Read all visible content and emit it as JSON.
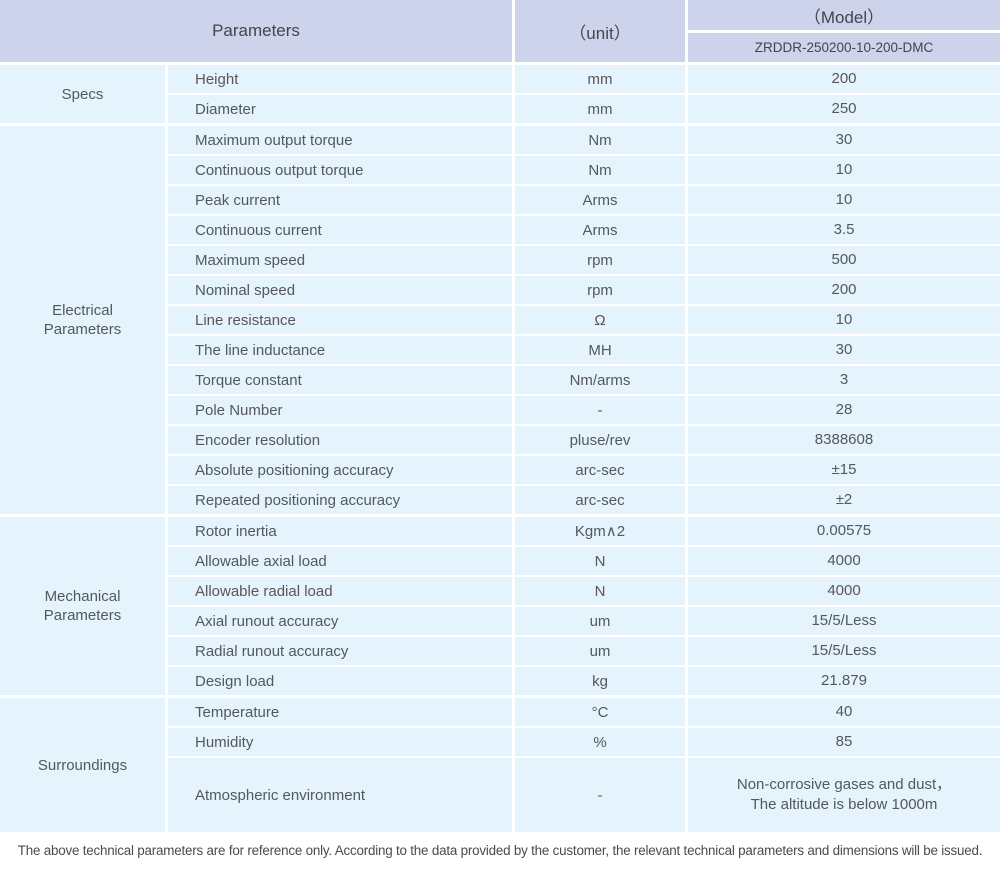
{
  "colors": {
    "header_bg": "#ccd3ea",
    "header_text": "#41464e",
    "cell_bg": "#e4f3fc",
    "cell_text": "#54585e",
    "separator": "#ffffff",
    "footer_text": "#4b4b4b"
  },
  "header": {
    "parameters_label": "Parameters",
    "unit_label": "（unit）",
    "model_label": "（Model）",
    "model_value": "ZRDDR-250200-10-200-DMC"
  },
  "sections": [
    {
      "name": "Specs",
      "rows": [
        {
          "parameter": "Height",
          "unit": "mm",
          "value": "200"
        },
        {
          "parameter": "Diameter",
          "unit": "mm",
          "value": "250"
        }
      ]
    },
    {
      "name": "Electrical\nParameters",
      "rows": [
        {
          "parameter": "Maximum output torque",
          "unit": "Nm",
          "value": "30"
        },
        {
          "parameter": "Continuous output torque",
          "unit": "Nm",
          "value": "10"
        },
        {
          "parameter": "Peak current",
          "unit": "Arms",
          "value": "10"
        },
        {
          "parameter": "Continuous current",
          "unit": "Arms",
          "value": "3.5"
        },
        {
          "parameter": "Maximum speed",
          "unit": "rpm",
          "value": "500"
        },
        {
          "parameter": "Nominal speed",
          "unit": "rpm",
          "value": "200"
        },
        {
          "parameter": "Line resistance",
          "unit": "Ω",
          "value": "10"
        },
        {
          "parameter": "The line inductance",
          "unit": "MH",
          "value": "30"
        },
        {
          "parameter": "Torque constant",
          "unit": "Nm/arms",
          "value": "3"
        },
        {
          "parameter": "Pole Number",
          "unit": "-",
          "value": "28"
        },
        {
          "parameter": "Encoder resolution",
          "unit": "pluse/rev",
          "value": "8388608"
        },
        {
          "parameter": "Absolute positioning accuracy",
          "unit": "arc-sec",
          "value": "±15"
        },
        {
          "parameter": "Repeated positioning accuracy",
          "unit": "arc-sec",
          "value": "±2"
        }
      ]
    },
    {
      "name": "Mechanical\nParameters",
      "rows": [
        {
          "parameter": "Rotor inertia",
          "unit": "Kgm∧2",
          "value": "0.00575"
        },
        {
          "parameter": "Allowable axial load",
          "unit": "N",
          "value": "4000"
        },
        {
          "parameter": "Allowable radial load",
          "unit": "N",
          "value": "4000"
        },
        {
          "parameter": "Axial runout accuracy",
          "unit": "um",
          "value": "15/5/Less"
        },
        {
          "parameter": "Radial runout accuracy",
          "unit": "um",
          "value": "15/5/Less"
        },
        {
          "parameter": "Design load",
          "unit": "kg",
          "value": "21.879"
        }
      ]
    },
    {
      "name": "Surroundings",
      "rows": [
        {
          "parameter": "Temperature",
          "unit": "°C",
          "value": "40"
        },
        {
          "parameter": "Humidity",
          "unit": "%",
          "value": "85"
        },
        {
          "parameter": "Atmospheric environment",
          "unit": "-",
          "value": "Non-corrosive gases and dust，\nThe altitude is below 1000m"
        }
      ]
    }
  ],
  "footer": {
    "note": "The above technical parameters are for reference only. According to the data provided by the customer, the relevant technical parameters and dimensions will be issued."
  }
}
